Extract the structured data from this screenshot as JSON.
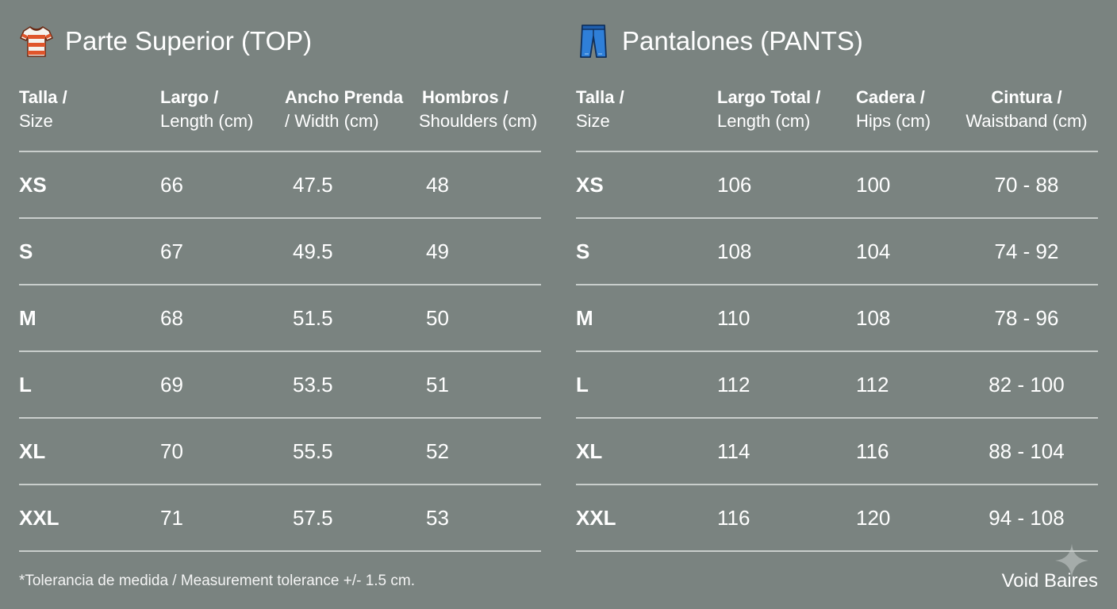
{
  "top": {
    "title": "Parte Superior (TOP)",
    "icon": "shirt-icon",
    "headers": [
      {
        "l1": "Talla /",
        "l2": "Size"
      },
      {
        "l1": "Largo /",
        "l2": "Length (cm)"
      },
      {
        "l1": "Ancho Prenda",
        "l2": "/ Width (cm)"
      },
      {
        "l1": "Hombros /",
        "l2": "Shoulders (cm)"
      }
    ],
    "rows": [
      [
        "XS",
        "66",
        "47.5",
        "48"
      ],
      [
        "S",
        "67",
        "49.5",
        "49"
      ],
      [
        "M",
        "68",
        "51.5",
        "50"
      ],
      [
        "L",
        "69",
        "53.5",
        "51"
      ],
      [
        "XL",
        "70",
        "55.5",
        "52"
      ],
      [
        "XXL",
        "71",
        "57.5",
        "53"
      ]
    ]
  },
  "pants": {
    "title": "Pantalones (PANTS)",
    "icon": "jeans-icon",
    "headers": [
      {
        "l1": "Talla /",
        "l2": "Size"
      },
      {
        "l1": "Largo Total /",
        "l2": "Length (cm)"
      },
      {
        "l1": "Cadera /",
        "l2": "Hips (cm)"
      },
      {
        "l1": "Cintura /",
        "l2": "Waistband (cm)"
      }
    ],
    "rows": [
      [
        "XS",
        "106",
        "100",
        "70 - 88"
      ],
      [
        "S",
        "108",
        "104",
        "74 - 92"
      ],
      [
        "M",
        "110",
        "108",
        "78 - 96"
      ],
      [
        "L",
        "112",
        "112",
        "82 - 100"
      ],
      [
        "XL",
        "114",
        "116",
        "88 - 104"
      ],
      [
        "XXL",
        "116",
        "120",
        "94 - 108"
      ]
    ]
  },
  "footnote": "*Tolerancia de medida / Measurement tolerance +/- 1.5 cm.",
  "brand": "Void Baires",
  "colors": {
    "background": "#7a8380",
    "text": "#ffffff",
    "rule": "#c9cecc",
    "shirt_stripe": "#e0552b",
    "jeans": "#2f7fd8"
  }
}
